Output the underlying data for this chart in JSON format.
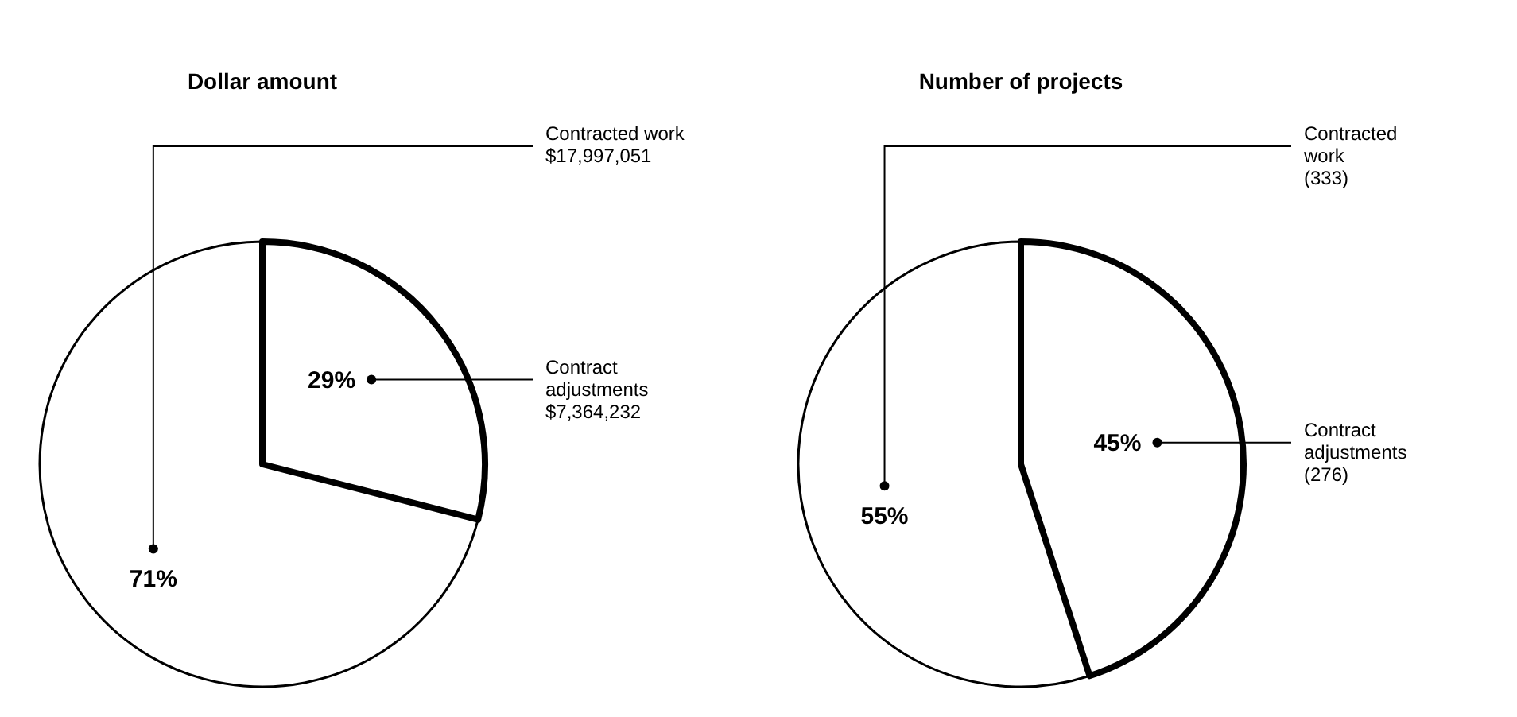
{
  "chart_data": [
    {
      "type": "pie",
      "title": "Dollar amount",
      "categories": [
        "Contracted work\n$17,997,051",
        "Contract\nadjustments\n$7,364,232"
      ],
      "values": [
        71,
        29
      ],
      "value_labels": [
        "71%",
        "29%"
      ],
      "colors": [
        "#ffffff",
        "#ffffff"
      ]
    },
    {
      "type": "pie",
      "title": "Number of projects",
      "categories": [
        "Contracted\nwork\n(333)",
        "Contract\nadjustments\n(276)"
      ],
      "values": [
        55,
        45
      ],
      "value_labels": [
        "55%",
        "45%"
      ],
      "colors": [
        "#ffffff",
        "#ffffff"
      ]
    }
  ]
}
